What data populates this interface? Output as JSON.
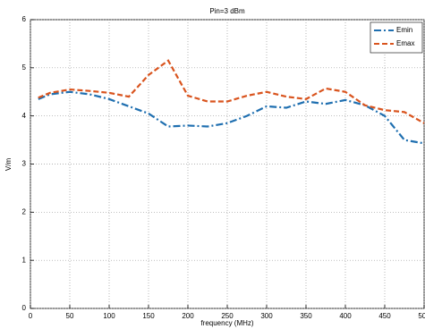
{
  "chart_data": {
    "type": "line",
    "title": "Pin=3 dBm",
    "x_label": "frequency (MHz)",
    "y_label": "V/m",
    "x": [
      10,
      25,
      50,
      75,
      100,
      125,
      150,
      175,
      200,
      225,
      250,
      275,
      300,
      325,
      350,
      375,
      400,
      425,
      450,
      475,
      500
    ],
    "series": [
      {
        "name": "Emin",
        "color": "#1f6fb0",
        "dash": "8 3 2 3",
        "values": [
          4.35,
          4.45,
          4.5,
          4.45,
          4.35,
          4.2,
          4.05,
          3.78,
          3.8,
          3.78,
          3.85,
          4.0,
          4.2,
          4.17,
          4.3,
          4.25,
          4.33,
          4.22,
          4.0,
          3.5,
          3.43
        ]
      },
      {
        "name": "Emax",
        "color": "#d9541e",
        "dash": "6 3",
        "values": [
          4.38,
          4.48,
          4.55,
          4.52,
          4.48,
          4.4,
          4.85,
          5.15,
          4.42,
          4.3,
          4.3,
          4.42,
          4.5,
          4.4,
          4.35,
          4.57,
          4.5,
          4.22,
          4.12,
          4.08,
          3.85
        ]
      }
    ],
    "xlim": [
      0,
      500
    ],
    "xticks": [
      0,
      50,
      100,
      150,
      200,
      250,
      300,
      350,
      400,
      450,
      500
    ],
    "ylim": [
      0,
      6
    ],
    "yticks": [
      0,
      1,
      2,
      3,
      4,
      5,
      6
    ],
    "grid": true,
    "legend": "upper right"
  }
}
